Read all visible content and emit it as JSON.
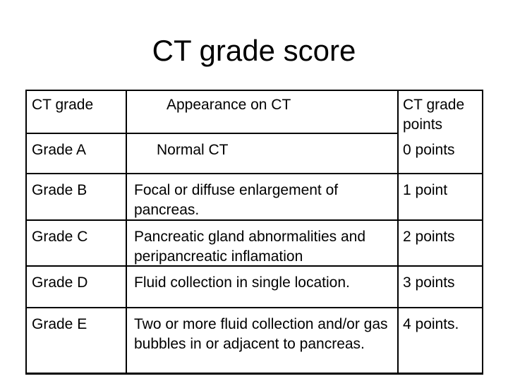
{
  "slide": {
    "title": "CT grade score"
  },
  "table": {
    "header": {
      "grade": "CT grade",
      "appearance": "Appearance on CT",
      "points": "CT grade points"
    },
    "rows": [
      {
        "grade": "Grade A",
        "appearance": "Normal CT",
        "points": "0 points"
      },
      {
        "grade": "Grade B",
        "appearance": "Focal or diffuse enlargement of pancreas.",
        "points": "1 point"
      },
      {
        "grade": "Grade C",
        "appearance": "Pancreatic gland abnormalities and peripancreatic inflamation",
        "points": "2 points"
      },
      {
        "grade": "Grade D",
        "appearance": "Fluid collection in single location.",
        "points": "3 points"
      },
      {
        "grade": "Grade E",
        "appearance": "Two or more fluid collection and/or gas bubbles in or adjacent to pancreas.",
        "points": "4 points."
      }
    ],
    "colors": {
      "text": "#000000",
      "border": "#000000",
      "background": "#ffffff"
    }
  }
}
